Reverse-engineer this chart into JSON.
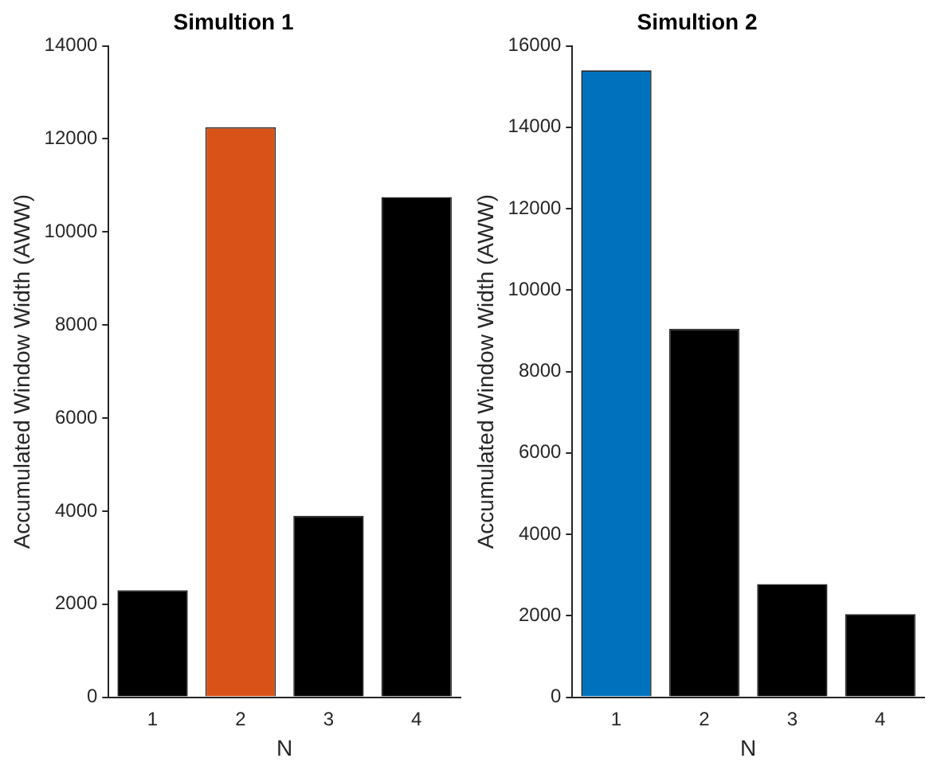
{
  "chart_data": [
    {
      "type": "bar",
      "title": "Simultion 1",
      "xlabel": "N",
      "ylabel": "Accumulated Window Width (AWW)",
      "categories": [
        "1",
        "2",
        "3",
        "4"
      ],
      "values": [
        2300,
        12250,
        3900,
        10750
      ],
      "colors": [
        "#000000",
        "#d95319",
        "#000000",
        "#000000"
      ],
      "ylim": [
        0,
        14000
      ],
      "yticks": [
        0,
        2000,
        4000,
        6000,
        8000,
        10000,
        12000,
        14000
      ],
      "grid": false,
      "legend": false
    },
    {
      "type": "bar",
      "title": "Simultion 2",
      "xlabel": "N",
      "ylabel": "Accumulated Window Width (AWW)",
      "categories": [
        "1",
        "2",
        "3",
        "4"
      ],
      "values": [
        15400,
        9050,
        2780,
        2040
      ],
      "colors": [
        "#0072bd",
        "#000000",
        "#000000",
        "#000000"
      ],
      "ylim": [
        0,
        16000
      ],
      "yticks": [
        0,
        2000,
        4000,
        6000,
        8000,
        10000,
        12000,
        14000,
        16000
      ],
      "grid": false,
      "legend": false
    }
  ]
}
